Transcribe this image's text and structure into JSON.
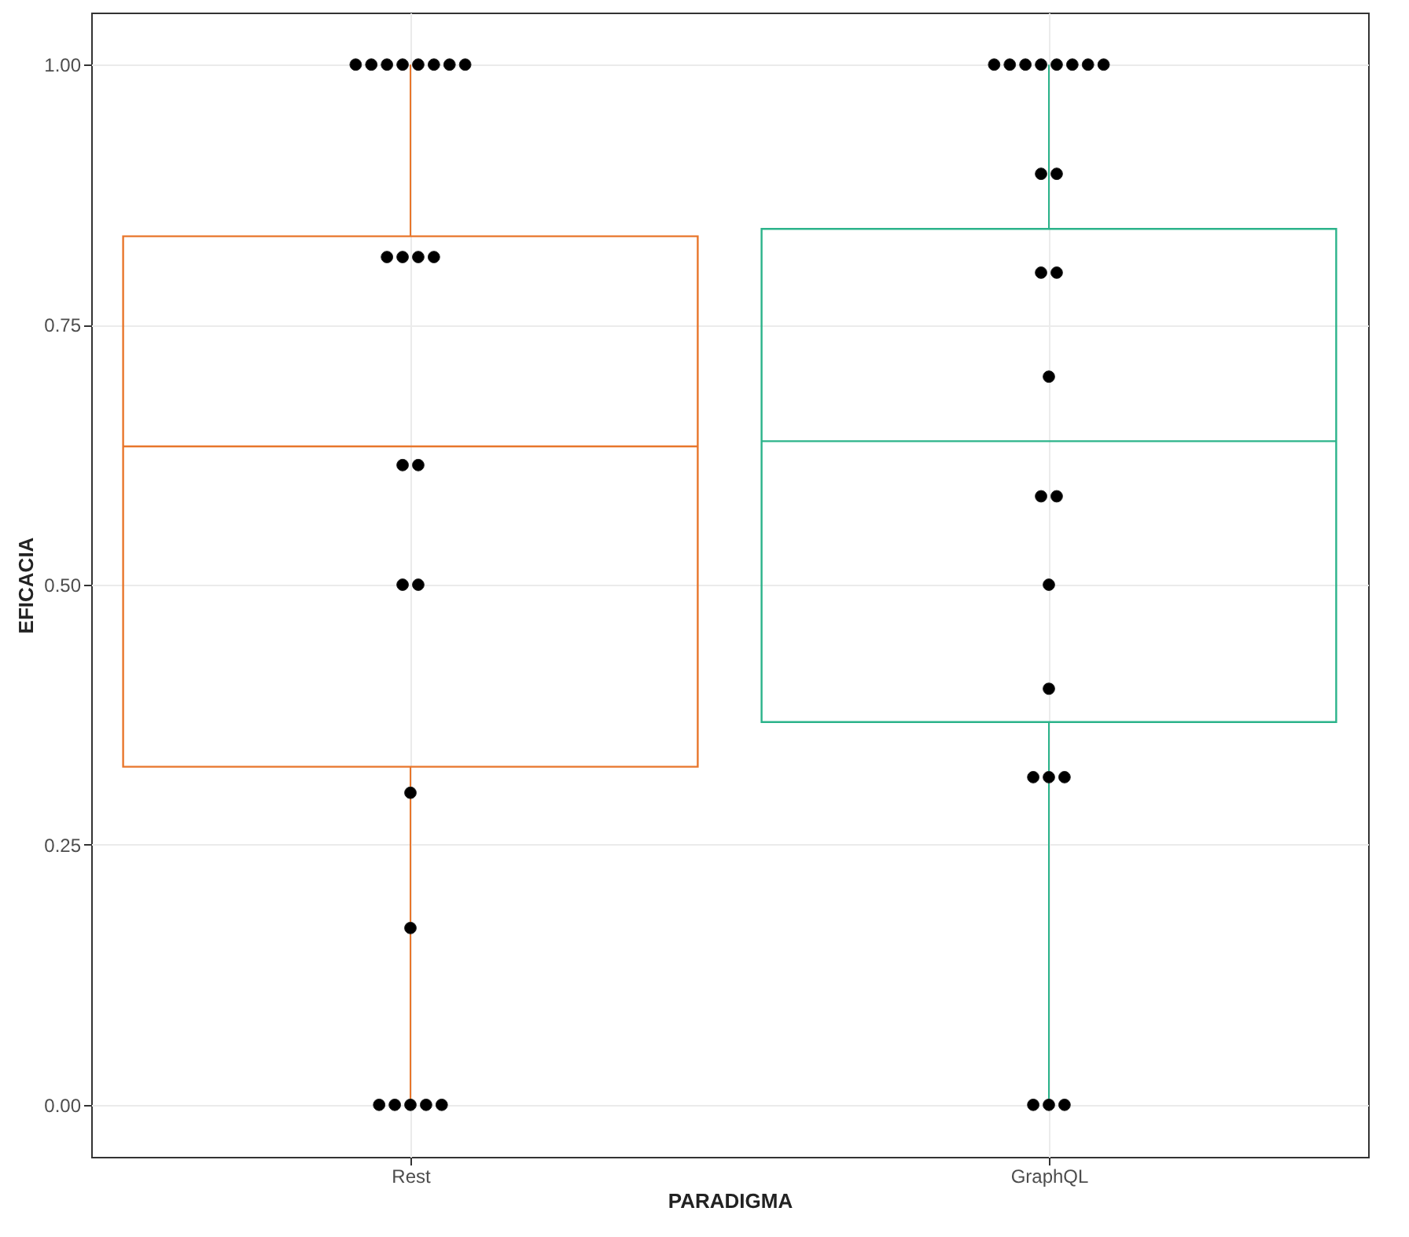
{
  "chart_data": {
    "type": "box",
    "xlabel": "PARADIGMA",
    "ylabel": "EFICACIA",
    "categories": [
      "Rest",
      "GraphQL"
    ],
    "colors": [
      "#e8762b",
      "#2bb38a"
    ],
    "boxes": [
      {
        "low": 0,
        "q1": 0.325,
        "median": 0.633,
        "q3": 0.835,
        "high": 1
      },
      {
        "low": 0,
        "q1": 0.368,
        "median": 0.638,
        "q3": 0.842,
        "high": 1
      }
    ],
    "series": [
      {
        "type": "scatter",
        "color": "#000000",
        "x": [
          "Rest",
          "Rest",
          "Rest",
          "Rest",
          "Rest",
          "Rest",
          "Rest",
          "Rest",
          "Rest",
          "Rest",
          "Rest",
          "Rest",
          "Rest",
          "Rest",
          "Rest",
          "Rest",
          "Rest",
          "Rest",
          "Rest",
          "Rest",
          "Rest",
          "Rest",
          "Rest",
          "GraphQL",
          "GraphQL",
          "GraphQL",
          "GraphQL",
          "GraphQL",
          "GraphQL",
          "GraphQL",
          "GraphQL",
          "GraphQL",
          "GraphQL",
          "GraphQL",
          "GraphQL",
          "GraphQL",
          "GraphQL",
          "GraphQL",
          "GraphQL",
          "GraphQL",
          "GraphQL",
          "GraphQL",
          "GraphQL",
          "GraphQL",
          "GraphQL",
          "GraphQL"
        ],
        "values": [
          1,
          1,
          1,
          1,
          1,
          1,
          1,
          1,
          0.815,
          0.815,
          0.815,
          0.815,
          0.615,
          0.615,
          0.5,
          0.5,
          0.3,
          0.17,
          0,
          0,
          0,
          0,
          0,
          1,
          1,
          1,
          1,
          1,
          1,
          1,
          1,
          0.895,
          0.895,
          0.8,
          0.8,
          0.7,
          0.585,
          0.585,
          0.5,
          0.4,
          0.315,
          0.315,
          0.315,
          0,
          0,
          0
        ]
      }
    ],
    "ylim": [
      -0.05,
      1.05
    ],
    "yticks": [
      {
        "value": 0,
        "label": "0.00"
      },
      {
        "value": 0.25,
        "label": "0.25"
      },
      {
        "value": 0.5,
        "label": "0.50"
      },
      {
        "value": 0.75,
        "label": "0.75"
      },
      {
        "value": 1,
        "label": "1.00"
      }
    ],
    "grid": true,
    "marker": "circle"
  }
}
